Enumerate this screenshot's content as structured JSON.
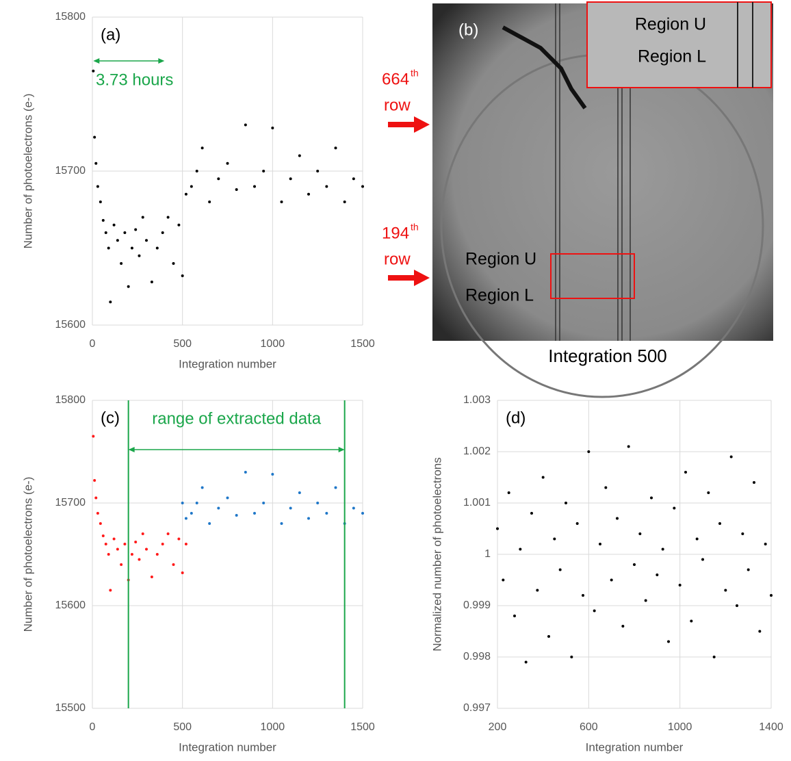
{
  "chart_data": [
    {
      "type": "scatter",
      "panel_label": "(a)",
      "xlabel": "Integration number",
      "ylabel": "Number of photoelectrons (e-)",
      "xlim": [
        0,
        1500
      ],
      "ylim": [
        15600,
        15800
      ],
      "xticks": [
        0,
        500,
        1000,
        1500
      ],
      "yticks": [
        15600,
        15700,
        15800
      ],
      "grid": true,
      "annotation": "3.73 hours",
      "span": [
        5,
        400
      ],
      "span_color": "#1aa64a",
      "series": [
        {
          "color": "#000000",
          "x": [
            5,
            12,
            20,
            30,
            45,
            60,
            75,
            90,
            100,
            120,
            140,
            160,
            180,
            200,
            220,
            240,
            260,
            280,
            300,
            330,
            360,
            390,
            420,
            450,
            480,
            500,
            520,
            550,
            580,
            610,
            650,
            700,
            750,
            800,
            850,
            900,
            950,
            1000,
            1050,
            1100,
            1150,
            1200,
            1250,
            1300,
            1350,
            1400,
            1450,
            1500
          ],
          "values": [
            15765,
            15722,
            15705,
            15690,
            15680,
            15668,
            15660,
            15650,
            15615,
            15665,
            15655,
            15640,
            15660,
            15625,
            15650,
            15662,
            15645,
            15670,
            15655,
            15628,
            15650,
            15660,
            15670,
            15640,
            15665,
            15632,
            15685,
            15690,
            15700,
            15715,
            15680,
            15695,
            15705,
            15688,
            15730,
            15690,
            15700,
            15728,
            15680,
            15695,
            15710,
            15685,
            15700,
            15690,
            15715,
            15680,
            15695,
            15690
          ]
        }
      ]
    },
    {
      "type": "scatter",
      "panel_label": "(c)",
      "xlabel": "Integration number",
      "ylabel": "Number of photoelectrons (e-)",
      "xlim": [
        0,
        1500
      ],
      "ylim": [
        15500,
        15800
      ],
      "xticks": [
        0,
        500,
        1000,
        1500
      ],
      "yticks": [
        15500,
        15600,
        15700,
        15800
      ],
      "grid": true,
      "annotation": "range of extracted data",
      "span": [
        200,
        1400
      ],
      "span_color": "#1aa64a",
      "series": [
        {
          "color": "#ff1a1a",
          "x": [
            5,
            12,
            20,
            30,
            45,
            60,
            75,
            90,
            100,
            120,
            140,
            160,
            180,
            200,
            220,
            240,
            260,
            280,
            300,
            330,
            360,
            390,
            420,
            450,
            480,
            500,
            520
          ],
          "values": [
            15765,
            15722,
            15705,
            15690,
            15680,
            15668,
            15660,
            15650,
            15615,
            15665,
            15655,
            15640,
            15660,
            15625,
            15650,
            15662,
            15645,
            15670,
            15655,
            15628,
            15650,
            15660,
            15670,
            15640,
            15665,
            15632,
            15660
          ]
        },
        {
          "color": "#1f77c8",
          "x": [
            500,
            520,
            550,
            580,
            610,
            650,
            700,
            750,
            800,
            850,
            900,
            950,
            1000,
            1050,
            1100,
            1150,
            1200,
            1250,
            1300,
            1350,
            1400,
            1450,
            1500
          ],
          "values": [
            15700,
            15685,
            15690,
            15700,
            15715,
            15680,
            15695,
            15705,
            15688,
            15730,
            15690,
            15700,
            15728,
            15680,
            15695,
            15710,
            15685,
            15700,
            15690,
            15715,
            15680,
            15695,
            15690
          ]
        }
      ]
    },
    {
      "type": "scatter",
      "panel_label": "(d)",
      "xlabel": "Integration number",
      "ylabel": "Normalized number of photoelectrons",
      "xlim": [
        200,
        1400
      ],
      "ylim": [
        0.997,
        1.003
      ],
      "xticks": [
        200,
        600,
        1000,
        1400
      ],
      "yticks": [
        0.997,
        0.998,
        0.999,
        1,
        1.001,
        1.002,
        1.003
      ],
      "grid": true,
      "series": [
        {
          "color": "#000000",
          "x": [
            200,
            225,
            250,
            275,
            300,
            325,
            350,
            375,
            400,
            425,
            450,
            475,
            500,
            525,
            550,
            575,
            600,
            625,
            650,
            675,
            700,
            725,
            750,
            775,
            800,
            825,
            850,
            875,
            900,
            925,
            950,
            975,
            1000,
            1025,
            1050,
            1075,
            1100,
            1125,
            1150,
            1175,
            1200,
            1225,
            1250,
            1275,
            1300,
            1325,
            1350,
            1375,
            1400
          ],
          "values": [
            1.0005,
            0.9995,
            1.0012,
            0.9988,
            1.0001,
            0.9979,
            1.0008,
            0.9993,
            1.0015,
            0.9984,
            1.0003,
            0.9997,
            1.001,
            0.998,
            1.0006,
            0.9992,
            1.002,
            0.9989,
            1.0002,
            1.0013,
            0.9995,
            1.0007,
            0.9986,
            1.0021,
            0.9998,
            1.0004,
            0.9991,
            1.0011,
            0.9996,
            1.0001,
            0.9983,
            1.0009,
            0.9994,
            1.0016,
            0.9987,
            1.0003,
            0.9999,
            1.0012,
            0.998,
            1.0006,
            0.9993,
            1.0019,
            0.999,
            1.0004,
            0.9997,
            1.0014,
            0.9985,
            1.0002,
            0.9992
          ]
        }
      ]
    }
  ],
  "image_panel": {
    "panel_label": "(b)",
    "caption": "Integration 500",
    "inset_upper": "Region U",
    "inset_lower": "Region L",
    "region_upper": "Region U",
    "region_lower": "Region L",
    "row_a_number": "664",
    "row_a_suffix": "th",
    "row_a_word": "row",
    "row_b_number": "194",
    "row_b_suffix": "th",
    "row_b_word": "row"
  }
}
